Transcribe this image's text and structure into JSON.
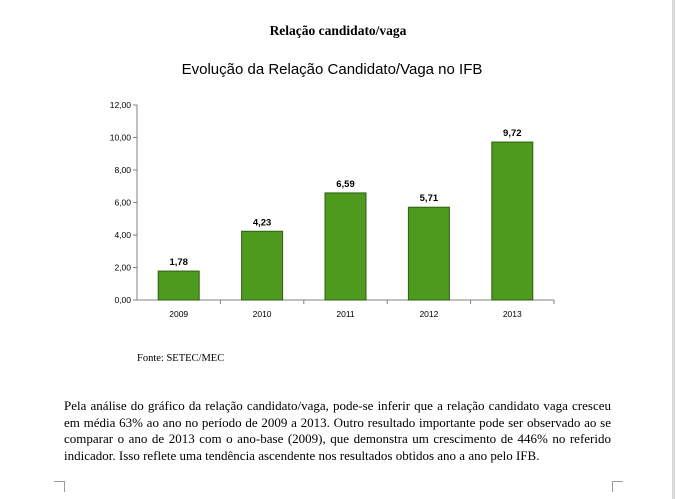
{
  "document": {
    "heading": "Relação candidato/vaga",
    "source": "Fonte: SETEC/MEC",
    "paragraph": "Pela análise do gráfico da relação candidato/vaga, pode-se inferir que a relação candidato vaga cresceu em média 63% ao ano no período de 2009 a 2013. Outro resultado importante pode ser observado ao se comparar o ano de 2013 com o ano-base (2009), que demonstra um crescimento de 446% no referido indicador. Isso reflete uma tendência ascendente nos resultados obtidos ano a ano pelo IFB."
  },
  "chart_data": {
    "type": "bar",
    "title": "Evolução da Relação Candidato/Vaga no IFB",
    "xlabel": "",
    "ylabel": "",
    "categories": [
      "2009",
      "2010",
      "2011",
      "2012",
      "2013"
    ],
    "values": [
      1.78,
      4.23,
      6.59,
      5.71,
      9.72
    ],
    "value_labels": [
      "1,78",
      "4,23",
      "6,59",
      "5,71",
      "9,72"
    ],
    "y_ticks": [
      "0,00",
      "2,00",
      "4,00",
      "6,00",
      "8,00",
      "10,00",
      "12,00"
    ],
    "y_tick_values": [
      0,
      2,
      4,
      6,
      8,
      10,
      12
    ],
    "ylim": [
      0,
      12
    ],
    "grid": false,
    "legend": "none",
    "bar_color": "#4e9a1f",
    "bar_outline": "#2f5f10"
  }
}
